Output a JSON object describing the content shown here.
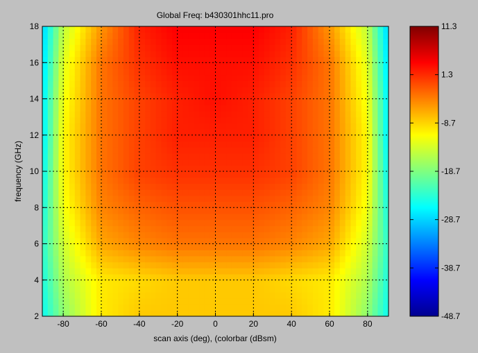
{
  "window": {
    "background": "#c0c0c0"
  },
  "chart_data": {
    "type": "heatmap",
    "title": "Global Freq:  b430301hhc11.pro",
    "xlabel": "scan axis (deg),  (colorbar (dBsm)",
    "ylabel": "frequency (GHz)",
    "xlim": [
      -91,
      91
    ],
    "ylim": [
      2,
      18
    ],
    "x_ticks": [
      -80,
      -60,
      -40,
      -20,
      0,
      20,
      40,
      60,
      80
    ],
    "y_ticks": [
      2,
      4,
      6,
      8,
      10,
      12,
      14,
      16,
      18
    ],
    "x_tick_labels": [
      "-80",
      "-60",
      "-40",
      "-20",
      "0",
      "20",
      "40",
      "60",
      "80"
    ],
    "y_tick_labels": [
      "2",
      "4",
      "6",
      "8",
      "10",
      "12",
      "14",
      "16",
      "18"
    ],
    "grid": true,
    "grid_style": "dotted",
    "colormap": "jet",
    "colorbar": {
      "label": "dBsm",
      "range": [
        -48.7,
        11.3
      ],
      "ticks": [
        11.3,
        1.3,
        -8.7,
        -18.7,
        -28.7,
        -38.7,
        -48.7
      ],
      "tick_labels": [
        "11.3",
        "1.3",
        "-8.7",
        "-18.7",
        "-28.7",
        "-38.7",
        "-48.7"
      ]
    },
    "field_description": "RCS level vs scan angle and frequency; peak ~0 to 4 dBsm near broadside (|angle|<40) at 10-18 GHz, falling to about -10 dBsm below 5 GHz and -20 to -28 dBsm near +/-90 deg",
    "sample_values": {
      "angles_deg": [
        -90,
        -80,
        -60,
        -40,
        -20,
        0,
        20,
        40,
        60,
        80,
        90
      ],
      "frequencies_ghz": [
        2,
        4,
        6,
        8,
        10,
        12,
        14,
        16,
        18
      ],
      "dbsm": [
        [
          -25,
          -18,
          -10,
          -8,
          -8,
          -8,
          -8,
          -8,
          -10,
          -18,
          -25
        ],
        [
          -24,
          -16,
          -10,
          -9,
          -8,
          -8,
          -8,
          -9,
          -10,
          -16,
          -24
        ],
        [
          -23,
          -14,
          -6,
          -4,
          -3,
          -3,
          -3,
          -4,
          -6,
          -14,
          -23
        ],
        [
          -24,
          -12,
          -4,
          -2,
          -1,
          -1,
          -1,
          -2,
          -4,
          -12,
          -24
        ],
        [
          -25,
          -11,
          -3,
          0,
          1,
          1,
          1,
          0,
          -3,
          -11,
          -25
        ],
        [
          -26,
          -11,
          -3,
          0,
          2,
          2,
          2,
          0,
          -3,
          -11,
          -26
        ],
        [
          -26,
          -12,
          -3,
          0,
          2,
          3,
          2,
          0,
          -3,
          -12,
          -26
        ],
        [
          -27,
          -13,
          -3,
          1,
          3,
          3,
          3,
          1,
          -3,
          -13,
          -27
        ],
        [
          -28,
          -15,
          -5,
          2,
          4,
          4,
          4,
          2,
          -5,
          -15,
          -28
        ]
      ]
    }
  }
}
